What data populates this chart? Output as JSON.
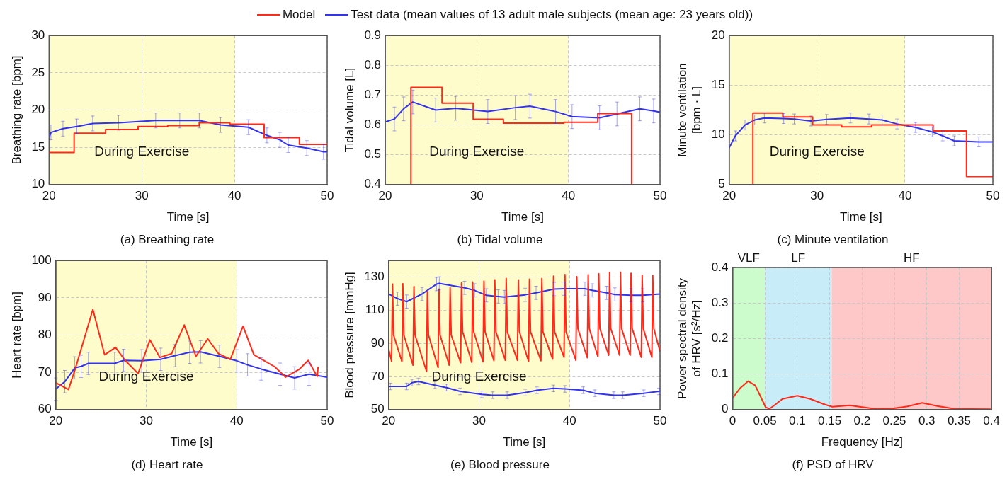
{
  "chart_data": [
    {
      "type": "line",
      "title": "(a) Breathing rate",
      "xlabel": "Time [s]",
      "ylabel": "Breathing rate [bpm]",
      "xlim": [
        20,
        50
      ],
      "xticks": [
        20,
        30,
        40,
        50
      ],
      "ylim": [
        10,
        30
      ],
      "yticks": [
        10,
        15,
        20,
        25,
        30
      ],
      "grid": true,
      "legend": "top",
      "bands": [
        {
          "axis": "x",
          "from": 20,
          "to": 40,
          "label": "During Exercise",
          "color": "#fffccc"
        }
      ],
      "series": [
        {
          "name": "Model",
          "type": "step",
          "color": "#ff2a1a",
          "x": [
            20,
            22.7,
            26.1,
            29.6,
            32.8,
            36.2,
            39.5,
            43.2,
            47.0,
            50
          ],
          "values": [
            14.3,
            16.9,
            17.4,
            17.8,
            17.9,
            18.3,
            18.1,
            16.3,
            15.4,
            15.4
          ]
        },
        {
          "name": "Test data (mean values of 13 adult male subjects (mean age: 23 years old))",
          "color": "#3333ee",
          "x": [
            20,
            20.2,
            21.5,
            23.0,
            24.7,
            27.5,
            31.5,
            34.1,
            36.2,
            38.5,
            41.5,
            43.5,
            44.9,
            45.8,
            47.8,
            49.6,
            50
          ],
          "values": [
            16.3,
            17.0,
            17.5,
            17.8,
            18.2,
            18.3,
            18.6,
            18.6,
            18.6,
            18.0,
            17.7,
            16.6,
            16.0,
            15.3,
            14.9,
            14.4,
            14.4
          ],
          "errors": [
            null,
            1,
            1,
            1,
            1,
            1,
            1,
            1,
            1,
            1,
            1,
            1,
            1,
            1,
            1,
            1,
            null
          ]
        }
      ]
    },
    {
      "type": "line",
      "title": "(b) Tidal volume",
      "xlabel": "Time [s]",
      "ylabel": "Tidal volume [L]",
      "xlim": [
        20,
        50
      ],
      "xticks": [
        20,
        30,
        40,
        50
      ],
      "ylim": [
        0.4,
        0.9
      ],
      "yticks": [
        0.4,
        0.5,
        0.6,
        0.7,
        0.8,
        0.9
      ],
      "grid": true,
      "bands": [
        {
          "axis": "x",
          "from": 20,
          "to": 40,
          "label": "During Exercise",
          "color": "#fffccc"
        }
      ],
      "series": [
        {
          "type": "step",
          "color": "#ff2a1a",
          "x": [
            22.8,
            22.8,
            26.2,
            29.6,
            32.9,
            39.5,
            43.2,
            46.9
          ],
          "values": [
            0.4,
            0.726,
            0.673,
            0.619,
            0.606,
            0.609,
            0.638,
            0.4
          ]
        },
        {
          "color": "#3333ee",
          "x": [
            20,
            21.0,
            22.0,
            23.0,
            25.5,
            27.7,
            31.2,
            34.2,
            35.8,
            38.6,
            40.4,
            43.4,
            45.3,
            47.8,
            49.3,
            50
          ],
          "values": [
            0.61,
            0.62,
            0.654,
            0.677,
            0.65,
            0.656,
            0.645,
            0.658,
            0.663,
            0.645,
            0.628,
            0.624,
            0.637,
            0.654,
            0.647,
            0.643
          ],
          "errors": [
            null,
            0.04,
            0.04,
            0.04,
            0.04,
            0.04,
            0.04,
            0.04,
            0.04,
            0.04,
            0.04,
            0.04,
            0.04,
            0.04,
            0.04,
            null
          ]
        }
      ]
    },
    {
      "type": "line",
      "title": "(c) Minute ventilation",
      "xlabel": "Time [s]",
      "ylabel": "Minute ventilation [bpm · L]",
      "xlim": [
        20,
        50
      ],
      "xticks": [
        20,
        30,
        40,
        50
      ],
      "ylim": [
        5,
        20
      ],
      "yticks": [
        5,
        10,
        15,
        20
      ],
      "grid": true,
      "bands": [
        {
          "axis": "x",
          "from": 20,
          "to": 40,
          "label": "During Exercise",
          "color": "#fffccc"
        }
      ],
      "series": [
        {
          "type": "step",
          "color": "#ff2a1a",
          "x": [
            22.7,
            22.7,
            26.1,
            29.5,
            32.8,
            36.2,
            43.2,
            47.0,
            50
          ],
          "values": [
            5,
            12.2,
            11.8,
            11.0,
            10.8,
            11.0,
            10.4,
            5.8,
            5.8
          ]
        },
        {
          "color": "#3333ee",
          "x": [
            20,
            20.7,
            21.8,
            22.9,
            24.0,
            26.2,
            27.4,
            29.3,
            31.1,
            33.8,
            35.9,
            37.4,
            39.1,
            41.2,
            43.1,
            44.3,
            45.6,
            48.4,
            50
          ],
          "values": [
            8.7,
            9.9,
            11.0,
            11.5,
            11.7,
            11.65,
            11.6,
            11.4,
            11.55,
            11.7,
            11.6,
            11.5,
            11.1,
            10.75,
            10.3,
            9.9,
            9.4,
            9.3,
            9.3
          ],
          "errors": [
            null,
            0.5,
            0.5,
            0.5,
            0.5,
            0.5,
            0.5,
            0.5,
            0.5,
            0.5,
            0.5,
            0.5,
            0.5,
            0.5,
            0.5,
            0.5,
            0.5,
            0.5,
            null
          ]
        }
      ]
    },
    {
      "type": "line",
      "title": "(d) Heart rate",
      "xlabel": "Time [s]",
      "ylabel": "Heart rate [bpm]",
      "xlim": [
        20,
        50
      ],
      "xticks": [
        20,
        30,
        40,
        50
      ],
      "ylim": [
        60,
        100
      ],
      "yticks": [
        60,
        70,
        80,
        90,
        100
      ],
      "grid": true,
      "bands": [
        {
          "axis": "x",
          "from": 20,
          "to": 40,
          "label": "During Exercise",
          "color": "#fffccc"
        }
      ],
      "series": [
        {
          "color": "#ff2a1a",
          "x": [
            20,
            21.4,
            22.1,
            24.1,
            25.4,
            26.6,
            27.7,
            29.1,
            30.4,
            31.5,
            32.8,
            34.2,
            35.5,
            36.8,
            38.0,
            39.3,
            40.7,
            41.9,
            44.2,
            45.4,
            46.9,
            47.9,
            48.9,
            49.0
          ],
          "values": [
            67.2,
            65.4,
            70.5,
            86.9,
            74.7,
            76.7,
            73.1,
            69.7,
            78.7,
            74.0,
            75.0,
            82.7,
            74.3,
            79.0,
            75.0,
            73.5,
            82.4,
            74.7,
            71.5,
            68.7,
            70.8,
            73.2,
            68.9,
            71.5
          ]
        },
        {
          "color": "#3333ee",
          "x": [
            20,
            21.0,
            22.1,
            22.8,
            23.6,
            26.5,
            27.5,
            29.5,
            31.6,
            33.2,
            34.8,
            36.0,
            38.1,
            40.0,
            41.2,
            42.7,
            44.8,
            46.4,
            48.0,
            50
          ],
          "values": [
            65.5,
            67.5,
            71.2,
            71.6,
            72.4,
            72.4,
            73.2,
            73.1,
            73.5,
            74.5,
            75.4,
            75.5,
            74.3,
            73.1,
            72.0,
            70.9,
            69.5,
            68.5,
            69.5,
            68.7
          ],
          "errors": [
            3,
            3,
            3,
            3,
            3,
            3,
            3,
            3,
            3,
            3,
            3,
            3,
            3,
            3,
            3,
            3,
            3,
            3,
            3,
            null
          ]
        }
      ]
    },
    {
      "type": "line",
      "title": "(e) Blood pressure",
      "xlabel": "Time [s]",
      "ylabel": "Blood pressure [mmHg]",
      "xlim": [
        20,
        50
      ],
      "xticks": [
        20,
        30,
        40,
        50
      ],
      "ylim": [
        50,
        140
      ],
      "yticks": [
        50,
        70,
        90,
        110,
        130
      ],
      "grid": true,
      "bands": [
        {
          "axis": "x",
          "from": 20,
          "to": 40,
          "label": "During Exercise",
          "color": "#fffccc"
        }
      ],
      "series": [
        {
          "color": "#ff2a1a",
          "x": [
            20,
            20.33,
            20.43,
            20.55,
            21.47,
            21.57,
            21.69,
            22.7,
            22.8,
            22.92,
            24.19,
            24.29,
            24.41,
            25.47,
            25.57,
            25.69,
            26.7,
            26.8,
            26.92,
            27.96,
            28.06,
            28.18,
            29.19,
            29.29,
            29.41,
            30.44,
            30.54,
            30.66,
            31.64,
            31.74,
            31.86,
            32.9,
            33.0,
            33.12,
            34.24,
            34.34,
            34.46,
            35.47,
            35.57,
            35.69,
            36.84,
            36.94,
            37.06,
            38.13,
            38.23,
            38.35,
            39.39,
            39.49,
            39.61,
            40.7,
            40.8,
            40.92,
            41.96,
            42.06,
            42.18,
            43.13,
            43.23,
            43.35,
            44.33,
            44.43,
            44.55,
            45.53,
            45.63,
            45.75,
            46.7,
            46.8,
            46.92,
            47.93,
            48.03,
            48.15,
            49.1,
            49.2,
            49.32,
            50
          ],
          "values": [
            86.6,
            79.1,
            125.8,
            95,
            79.0,
            126,
            95,
            76.8,
            124.3,
            95,
            73.1,
            121.5,
            95,
            75.4,
            122.8,
            95,
            76.8,
            123.5,
            95,
            78.3,
            126.5,
            97,
            78.6,
            127,
            97,
            78.8,
            127.6,
            97,
            79.5,
            128.3,
            97,
            79.8,
            129.2,
            97,
            79.8,
            128.3,
            97,
            79.1,
            128.8,
            97,
            79.5,
            129.2,
            97,
            80.5,
            130.6,
            97,
            81.6,
            131.5,
            97,
            79.8,
            130.3,
            99,
            81.3,
            131.4,
            99,
            82.1,
            132.1,
            99,
            82.8,
            132.9,
            99,
            82.8,
            133,
            99,
            82.8,
            132.3,
            99,
            81.6,
            131,
            99,
            81.6,
            131,
            99,
            85.1
          ]
        },
        {
          "color": "#3333ee",
          "x": [
            20,
            21.0,
            22.0,
            23.7,
            25.3,
            25.6,
            28.4,
            29.5,
            30.8,
            32.1,
            32.8,
            35.1,
            36.3,
            38.3,
            39.4,
            41.7,
            42.5,
            44.1,
            45.0,
            46.8,
            48.1,
            50
          ],
          "values": [
            119.8,
            117,
            115.2,
            119.8,
            125.8,
            126.2,
            123.5,
            122,
            119,
            118.3,
            118,
            119.3,
            120.5,
            122.8,
            123,
            123,
            122,
            120.5,
            119.5,
            119,
            119,
            119.8
          ],
          "errors": [
            null,
            4,
            4,
            4,
            4,
            4,
            4,
            4,
            4,
            4,
            4,
            4,
            4,
            4,
            4,
            4,
            4,
            4,
            4,
            4,
            4,
            null
          ]
        },
        {
          "color": "#3333ee",
          "x": [
            20,
            20.2,
            22.0,
            22.6,
            23.3,
            25.1,
            26.4,
            27.9,
            30.3,
            31.5,
            33.1,
            35.1,
            36.4,
            38.2,
            39.5,
            41.5,
            42.8,
            44.9,
            45.9,
            48.2,
            49.9,
            50
          ],
          "values": [
            64,
            64,
            64,
            66.3,
            67,
            64.8,
            63.3,
            61,
            59.2,
            58.7,
            58.7,
            60.3,
            61.7,
            62.8,
            62.5,
            61.7,
            59.9,
            58.7,
            58.7,
            59.9,
            61,
            61.3
          ],
          "errors": [
            null,
            2,
            2,
            2,
            2,
            2,
            2,
            2,
            2,
            2,
            2,
            2,
            2,
            2,
            2,
            2,
            2,
            2,
            2,
            2,
            2,
            null
          ]
        }
      ]
    },
    {
      "type": "line",
      "title": "(f) PSD of HRV",
      "xlabel": "Frequency [Hz]",
      "ylabel": "Power spectral density of HRV [s²/Hz]",
      "xlim": [
        0,
        0.4
      ],
      "xticks": [
        0,
        0.05,
        0.1,
        0.15,
        0.2,
        0.25,
        0.3,
        0.35,
        0.4
      ],
      "ylim": [
        0,
        0.4
      ],
      "yticks": [
        0,
        0.1,
        0.2,
        0.3,
        0.4
      ],
      "grid": true,
      "bands": [
        {
          "axis": "x",
          "from": 0,
          "to": 0.05,
          "label": "VLF",
          "color": "#ccfccc"
        },
        {
          "axis": "x",
          "from": 0.05,
          "to": 0.153,
          "label": "LF",
          "color": "#c8ecf8"
        },
        {
          "axis": "x",
          "from": 0.153,
          "to": 0.4,
          "label": "HF",
          "color": "#ffc8c8"
        }
      ],
      "series": [
        {
          "color": "#ff2a1a",
          "x": [
            0,
            0.012,
            0.024,
            0.035,
            0.044,
            0.051,
            0.057,
            0.066,
            0.077,
            0.1,
            0.12,
            0.143,
            0.154,
            0.181,
            0.2,
            0.22,
            0.247,
            0.27,
            0.293,
            0.316,
            0.343,
            0.4
          ],
          "values": [
            0.032,
            0.061,
            0.08,
            0.068,
            0.034,
            0.007,
            0.002,
            0.014,
            0.03,
            0.039,
            0.03,
            0.014,
            0.008,
            0.012,
            0.007,
            0.002,
            0.003,
            0.009,
            0.019,
            0.01,
            0.002,
            0.001
          ]
        }
      ]
    }
  ]
}
